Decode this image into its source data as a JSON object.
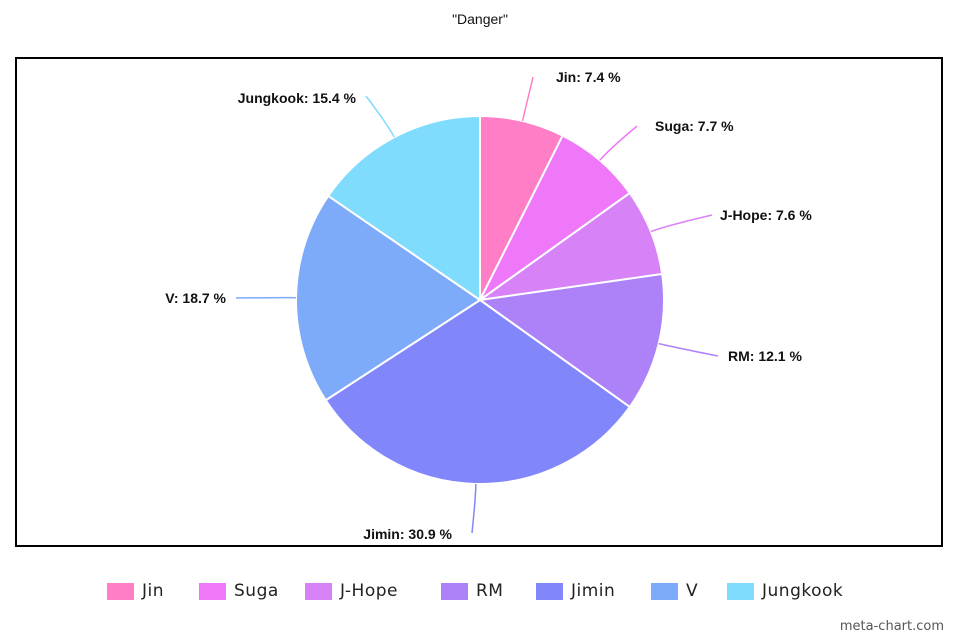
{
  "chart_data": {
    "type": "pie",
    "title": "\"Danger\"",
    "slices": [
      {
        "label": "Jin",
        "value": 7.4,
        "label_text": "Jin: 7.4 %",
        "color": "#ff7ec6"
      },
      {
        "label": "Suga",
        "value": 7.7,
        "label_text": "Suga: 7.7 %",
        "color": "#ee78f8"
      },
      {
        "label": "J-Hope",
        "value": 7.6,
        "label_text": "J-Hope: 7.6 %",
        "color": "#d882f7"
      },
      {
        "label": "RM",
        "value": 12.1,
        "label_text": "RM: 12.1 %",
        "color": "#ad82f8"
      },
      {
        "label": "Jimin",
        "value": 30.9,
        "label_text": "Jimin: 30.9 %",
        "color": "#8187fb"
      },
      {
        "label": "V",
        "value": 18.7,
        "label_text": "V: 18.7 %",
        "color": "#7eaafa"
      },
      {
        "label": "Jungkook",
        "value": 15.4,
        "label_text": "Jungkook: 15.4 %",
        "color": "#80dcfc"
      }
    ],
    "legend_position": "bottom"
  },
  "watermark": "meta-chart.com"
}
